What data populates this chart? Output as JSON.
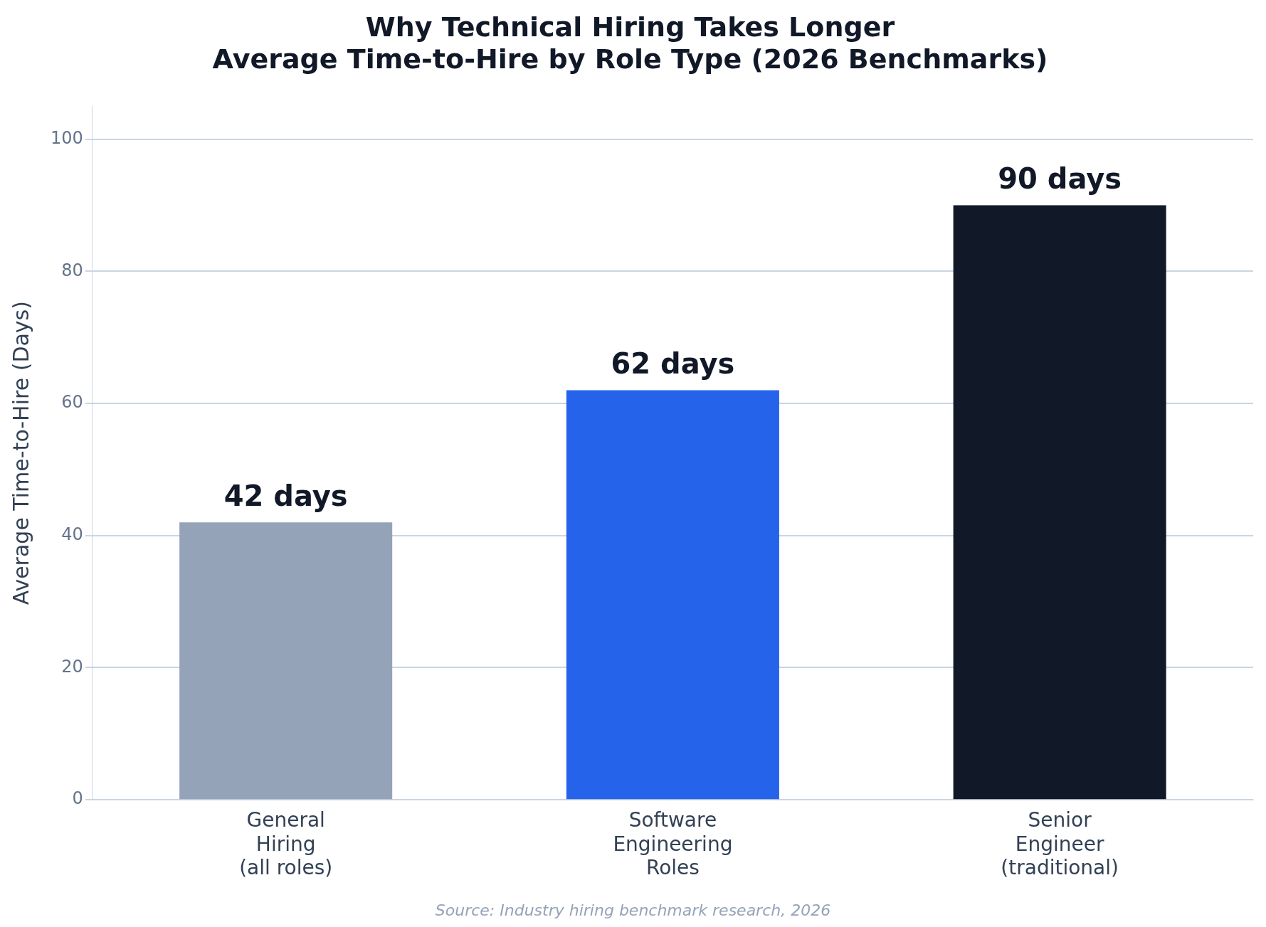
{
  "chart_data": {
    "type": "bar",
    "title": "Why Technical Hiring Takes Longer",
    "subtitle": "Average Time-to-Hire by Role Type (2026 Benchmarks)",
    "ylabel": "Average Time-to-Hire (Days)",
    "categories": [
      "General\nHiring\n(all roles)",
      "Software\nEngineering\nRoles",
      "Senior\nEngineer\n(traditional)"
    ],
    "values": [
      42,
      62,
      90
    ],
    "colors": [
      "#94a3b8",
      "#2563eb",
      "#111827"
    ],
    "value_labels": [
      "42 days",
      "62 days",
      "90 days"
    ],
    "ylim": [
      0,
      105
    ],
    "yticks": [
      0,
      20,
      40,
      60,
      80,
      100
    ],
    "grid": "y",
    "legend": false,
    "annotations": [
      "Source: Industry hiring benchmark research, 2026"
    ]
  }
}
